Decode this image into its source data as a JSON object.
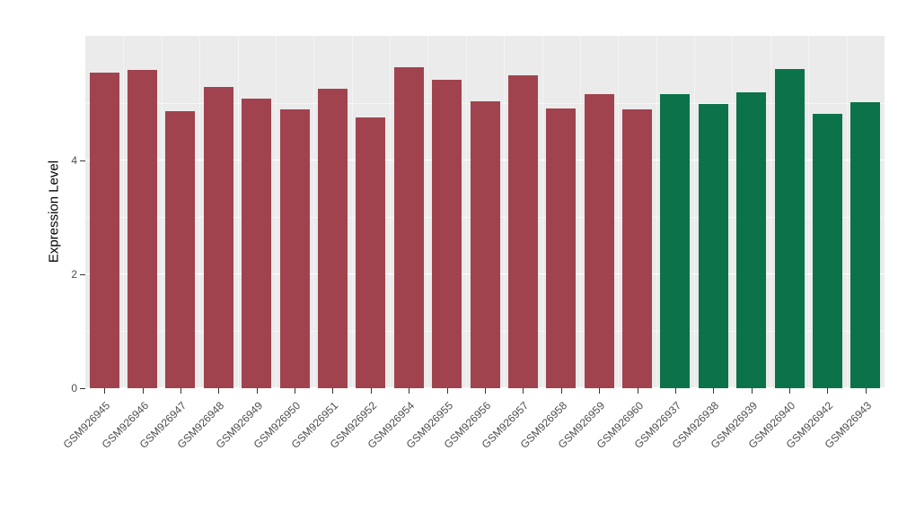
{
  "chart_data": {
    "type": "bar",
    "title": "",
    "xlabel": "",
    "ylabel": "Expression Level",
    "ylim": [
      0,
      6.2
    ],
    "yticks": [
      0,
      2,
      4
    ],
    "yticks_minor": [
      1,
      3,
      5
    ],
    "grid": true,
    "legend_position": "none",
    "categories": [
      "GSM926945",
      "GSM926946",
      "GSM926947",
      "GSM926948",
      "GSM926949",
      "GSM926950",
      "GSM926951",
      "GSM926952",
      "GSM926954",
      "GSM926955",
      "GSM926956",
      "GSM926957",
      "GSM926958",
      "GSM926959",
      "GSM926960",
      "GSM926937",
      "GSM926938",
      "GSM926939",
      "GSM926940",
      "GSM926942",
      "GSM926943"
    ],
    "values": [
      5.55,
      5.6,
      4.88,
      5.3,
      5.1,
      4.9,
      5.27,
      4.77,
      5.65,
      5.42,
      5.05,
      5.5,
      4.93,
      5.17,
      4.91,
      5.18,
      5.0,
      5.21,
      5.62,
      4.82,
      5.04
    ],
    "bar_colors": [
      "#A0434E",
      "#A0434E",
      "#A0434E",
      "#A0434E",
      "#A0434E",
      "#A0434E",
      "#A0434E",
      "#A0434E",
      "#A0434E",
      "#A0434E",
      "#A0434E",
      "#A0434E",
      "#A0434E",
      "#A0434E",
      "#A0434E",
      "#0B7249",
      "#0B7249",
      "#0B7249",
      "#0B7249",
      "#0B7249",
      "#0B7249"
    ],
    "palette": {
      "group_red": "#A0434E",
      "group_green": "#0B7249",
      "panel_background": "#EBEBEB",
      "gridline": "#FFFFFF",
      "axis_text": "#4D4D4D"
    }
  }
}
